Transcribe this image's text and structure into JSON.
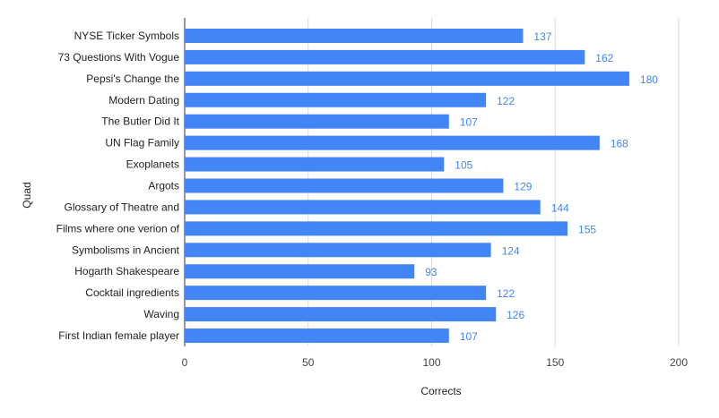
{
  "chart_data": {
    "type": "bar",
    "orientation": "horizontal",
    "categories": [
      "NYSE Ticker Symbols",
      "73 Questions With Vogue",
      "Pepsi's Change the",
      "Modern Dating",
      "The Butler Did It",
      "UN Flag Family",
      "Exoplanets",
      "Argots",
      "Glossary of Theatre and",
      "Films where one verion of",
      "Symbolisms in Ancient",
      "Hogarth Shakespeare",
      "Cocktail ingredients",
      "Waving",
      "First Indian female player"
    ],
    "values": [
      137,
      162,
      180,
      122,
      107,
      168,
      105,
      129,
      144,
      155,
      124,
      93,
      122,
      126,
      107
    ],
    "xlabel": "Corrects",
    "ylabel": "Quad",
    "xlim": [
      0,
      200
    ],
    "xticks": [
      0,
      50,
      100,
      150,
      200
    ],
    "grid": "vertical",
    "data_labels": true,
    "bar_color": "#4285f4",
    "label_color": "#4285f4"
  }
}
